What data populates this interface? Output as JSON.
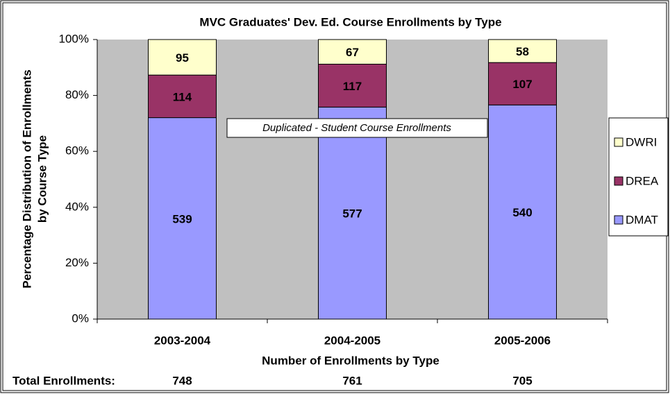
{
  "chart_data": {
    "type": "stacked_percent_bar",
    "title": "MVC Graduates' Dev. Ed. Course Enrollments by Type",
    "y_label": [
      "Percentage Distribution of Enrollments",
      "by Course Type"
    ],
    "x_label": "Number of Enrollments by Type",
    "annotation": "Duplicated - Student Course Enrollments",
    "categories": [
      "2003-2004",
      "2004-2005",
      "2005-2006"
    ],
    "series": [
      {
        "name": "DMAT",
        "color": "#9999ff",
        "values": [
          539,
          577,
          540
        ]
      },
      {
        "name": "DREA",
        "color": "#993366",
        "values": [
          114,
          117,
          107
        ]
      },
      {
        "name": "DWRI",
        "color": "#ffffcc",
        "values": [
          95,
          67,
          58
        ]
      }
    ],
    "totals_label": "Total Enrollments:",
    "totals": [
      748,
      761,
      705
    ],
    "ylim": [
      0,
      100
    ],
    "yticks": [
      {
        "value": 0,
        "label": "0%"
      },
      {
        "value": 20,
        "label": "20%"
      },
      {
        "value": 40,
        "label": "40%"
      },
      {
        "value": 60,
        "label": "60%"
      },
      {
        "value": 80,
        "label": "80%"
      },
      {
        "value": 100,
        "label": "100%"
      }
    ],
    "legend": "right",
    "plot_background": "#c0c0c0"
  }
}
